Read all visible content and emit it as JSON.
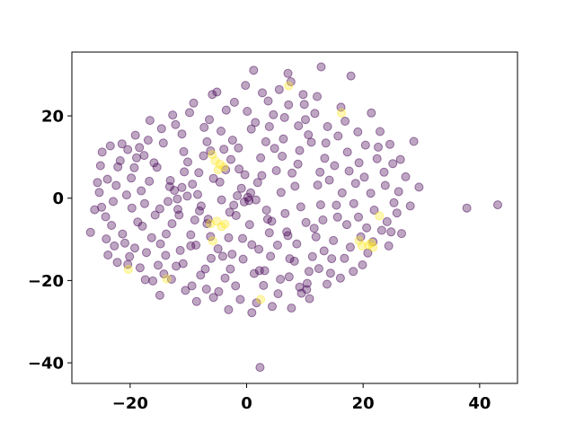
{
  "chart_data": {
    "type": "scatter",
    "title": "",
    "xlabel": "",
    "ylabel": "",
    "xlim": [
      -30,
      46.5
    ],
    "ylim": [
      -45,
      35.5
    ],
    "xticks": [
      -20,
      0,
      20,
      40
    ],
    "yticks": [
      -40,
      -20,
      0,
      20
    ],
    "xtick_labels": [
      "−20",
      "0",
      "20",
      "40"
    ],
    "ytick_labels": [
      "−40",
      "−20",
      "0",
      "20"
    ],
    "grid": false,
    "legend": "none",
    "colors": {
      "class_0": "#440154",
      "class_1": "#fde725"
    },
    "marker_alpha": 0.35,
    "series": [
      {
        "class": 0,
        "points": [
          [
            -26.8,
            -8.3
          ],
          [
            -25.6,
            3.8
          ],
          [
            -24.8,
            11.2
          ],
          [
            -24.2,
            -4.5
          ],
          [
            -23.8,
            -13.8
          ],
          [
            -22.9,
            -0.8
          ],
          [
            -22.1,
            7.6
          ],
          [
            -21.4,
            13.2
          ],
          [
            -20.9,
            -10.9
          ],
          [
            -20.4,
            -16.1
          ],
          [
            -19.8,
            4.9
          ],
          [
            -19.1,
            15.3
          ],
          [
            -18.7,
            -5.8
          ],
          [
            -18.1,
            1.8
          ],
          [
            -17.6,
            10.4
          ],
          [
            -17.2,
            -13.2
          ],
          [
            -16.6,
            18.9
          ],
          [
            -16.1,
            -20.1
          ],
          [
            -15.4,
            7.5
          ],
          [
            -14.9,
            -2.6
          ],
          [
            -14.3,
            13.4
          ],
          [
            -13.8,
            -8.7
          ],
          [
            -13.2,
            2.8
          ],
          [
            -12.7,
            20.2
          ],
          [
            -12.1,
            -16.5
          ],
          [
            -11.6,
            -4.1
          ],
          [
            -11.1,
            15.6
          ],
          [
            -10.5,
            -22.4
          ],
          [
            -10.1,
            8.8
          ],
          [
            -9.6,
            -11.6
          ],
          [
            -9.1,
            23.1
          ],
          [
            -8.4,
            0.9
          ],
          [
            -7.9,
            -18.7
          ],
          [
            -7.3,
            17.2
          ],
          [
            -6.8,
            -6.2
          ],
          [
            -6.2,
            11.5
          ],
          [
            -5.7,
            -24.1
          ],
          [
            -5.1,
            25.8
          ],
          [
            -4.6,
            3.9
          ],
          [
            -4.1,
            -14.1
          ],
          [
            -3.5,
            21.4
          ],
          [
            -2.9,
            -3.4
          ],
          [
            -2.4,
            14.1
          ],
          [
            -1.9,
            -21.3
          ],
          [
            -1.3,
            7.1
          ],
          [
            -0.7,
            -9.8
          ],
          [
            -0.2,
            27.4
          ],
          [
            0.4,
            -0.6
          ],
          [
            0.9,
            -27.8
          ],
          [
            1.5,
            18.4
          ],
          [
            2.1,
            -12.4
          ],
          [
            2.6,
            5.5
          ],
          [
            3.1,
            -17.6
          ],
          [
            3.7,
            23.6
          ],
          [
            4.3,
            -5.6
          ],
          [
            4.8,
            12.1
          ],
          [
            5.4,
            -23.2
          ],
          [
            5.9,
            1.4
          ],
          [
            6.5,
            19.6
          ],
          [
            7.1,
            -9.1
          ],
          [
            7.6,
            28.3
          ],
          [
            8.2,
            -15.3
          ],
          [
            8.8,
            8.3
          ],
          [
            9.3,
            -2.1
          ],
          [
            9.9,
            22.8
          ],
          [
            10.4,
            -20.7
          ],
          [
            11.1,
            13.6
          ],
          [
            11.6,
            -7.3
          ],
          [
            12.2,
            3.2
          ],
          [
            12.8,
            31.9
          ],
          [
            13.3,
            -12.8
          ],
          [
            13.9,
            17.4
          ],
          [
            14.4,
            -18.2
          ],
          [
            15.1,
            7.9
          ],
          [
            15.6,
            -4.6
          ],
          [
            16.2,
            22.1
          ],
          [
            16.8,
            -14.6
          ],
          [
            17.3,
            11.2
          ],
          [
            17.9,
            29.7
          ],
          [
            18.4,
            -1.3
          ],
          [
            19.1,
            16.1
          ],
          [
            19.6,
            -9.4
          ],
          [
            20.2,
            5.1
          ],
          [
            20.8,
            -13.3
          ],
          [
            21.4,
            20.7
          ],
          [
            21.9,
            -2.9
          ],
          [
            22.6,
            12.4
          ],
          [
            23.2,
            -7.8
          ],
          [
            23.8,
            3.1
          ],
          [
            24.4,
            -11.6
          ],
          [
            25.1,
            8.4
          ],
          [
            25.8,
            -3.6
          ],
          [
            26.6,
            -8.6
          ],
          [
            27.3,
            5.2
          ],
          [
            28.1,
            -1.9
          ],
          [
            28.7,
            13.8
          ],
          [
            29.6,
            2.7
          ],
          [
            37.8,
            -2.4
          ],
          [
            43.1,
            -1.6
          ],
          [
            2.3,
            -41.1
          ],
          [
            1.2,
            31.1
          ],
          [
            7.1,
            30.3
          ],
          [
            -13.5,
            -0.8
          ],
          [
            -12.4,
            1.9
          ],
          [
            -11.1,
            2.6
          ],
          [
            -10.2,
            0.5
          ],
          [
            -11.9,
            -0.2
          ],
          [
            -1.6,
            0.6
          ],
          [
            -0.4,
            -0.9
          ],
          [
            0.7,
            1.3
          ],
          [
            -0.9,
            2.4
          ],
          [
            1.6,
            -0.4
          ],
          [
            0.2,
            0.2
          ],
          [
            -2.2,
            -1.7
          ],
          [
            9.4,
            -23.1
          ],
          [
            10.3,
            -22.2
          ],
          [
            10.8,
            -24.4
          ],
          [
            9.1,
            -21.6
          ],
          [
            2.2,
            -17.6
          ],
          [
            1.3,
            -18.3
          ],
          [
            -6.6,
            -5.1
          ],
          [
            -14.2,
            -18.4
          ],
          [
            -17.4,
            -19.8
          ],
          [
            -15.2,
            -16.3
          ],
          [
            -18.9,
            9.8
          ],
          [
            -19.7,
            -2.4
          ],
          [
            -16.3,
            -9.6
          ],
          [
            -8.9,
            -5.3
          ],
          [
            -6.1,
            -14.6
          ],
          [
            -3.7,
            -19.4
          ],
          [
            -1.1,
            -24.6
          ],
          [
            4.4,
            -26.3
          ],
          [
            7.7,
            -26.7
          ],
          [
            12.4,
            -17.1
          ],
          [
            14.9,
            -10.3
          ],
          [
            17.2,
            -6.4
          ],
          [
            18.7,
            3.6
          ],
          [
            13.4,
            9.7
          ],
          [
            10.6,
            15.4
          ],
          [
            6.1,
            10.2
          ],
          [
            3.3,
            13.7
          ],
          [
            -2.7,
            9.4
          ],
          [
            -8.2,
            6.2
          ],
          [
            -10.8,
            11.3
          ],
          [
            -14.6,
            16.9
          ],
          [
            -6.4,
            19.1
          ],
          [
            -4.4,
            16.3
          ],
          [
            0.8,
            16.8
          ],
          [
            4.6,
            20.3
          ],
          [
            8.9,
            17.6
          ],
          [
            11.7,
            20.6
          ],
          [
            15.7,
            15.1
          ],
          [
            19.3,
            8.6
          ],
          [
            21.3,
            1.2
          ],
          [
            24.1,
            -5.7
          ],
          [
            22.4,
            9.6
          ],
          [
            26.1,
            1.6
          ],
          [
            3.9,
            -8.4
          ],
          [
            6.6,
            -3.7
          ],
          [
            8.3,
            2.9
          ],
          [
            10.2,
            -5.9
          ],
          [
            12.7,
            -1.6
          ],
          [
            14.2,
            4.4
          ],
          [
            16.4,
            1.3
          ],
          [
            5.1,
            6.7
          ],
          [
            -3.1,
            -9.6
          ],
          [
            -7.8,
            -1.9
          ],
          [
            -9.6,
            -8.9
          ],
          [
            -12.8,
            -6.2
          ],
          [
            -15.7,
            -4.1
          ],
          [
            -17.9,
            -6.8
          ],
          [
            -20.6,
            0.8
          ],
          [
            -22.4,
            3.1
          ],
          [
            -23.2,
            -6.6
          ],
          [
            -20.1,
            -14.2
          ],
          [
            -18.3,
            -16.9
          ],
          [
            -11.4,
            -12.7
          ],
          [
            -7.1,
            -17.2
          ],
          [
            -4.8,
            -22.7
          ],
          [
            -0.6,
            -14.8
          ],
          [
            2.9,
            -21.2
          ],
          [
            5.8,
            -19.7
          ],
          [
            8.6,
            -11.1
          ],
          [
            11.9,
            -9.4
          ],
          [
            13.1,
            -5.3
          ],
          [
            17.8,
            -11.9
          ],
          [
            19.9,
            -16.2
          ],
          [
            16.1,
            -19.4
          ],
          [
            13.8,
            -20.9
          ],
          [
            -5.9,
            25.2
          ],
          [
            -2.1,
            23.3
          ],
          [
            2.7,
            25.6
          ],
          [
            5.6,
            26.4
          ],
          [
            9.7,
            25.2
          ],
          [
            12.1,
            24.7
          ],
          [
            -9.8,
            20.8
          ],
          [
            -12.2,
            17.9
          ],
          [
            -16.9,
            14.1
          ],
          [
            -18.4,
            12.3
          ],
          [
            -21.7,
            9.1
          ],
          [
            -23.9,
            4.6
          ],
          [
            -24.9,
            -2.2
          ],
          [
            -21.3,
            -8.7
          ],
          [
            0.5,
            -6.4
          ],
          [
            -1.8,
            -4.2
          ],
          [
            1.9,
            3.8
          ],
          [
            -0.3,
            5.7
          ],
          [
            3.4,
            -2.9
          ],
          [
            -4.3,
            -0.4
          ],
          [
            -5.7,
            4.8
          ],
          [
            -3.6,
            6.9
          ],
          [
            6.9,
            -8.2
          ],
          [
            7.8,
            6.1
          ],
          [
            -7.4,
            10.3
          ],
          [
            -8.7,
            -11.4
          ],
          [
            -13.9,
            -13.9
          ],
          [
            -15.9,
            8.6
          ],
          [
            -10.7,
            6.4
          ],
          [
            -19.2,
            -12.1
          ],
          [
            -22.7,
            -11.6
          ],
          [
            -25.3,
            1.4
          ],
          [
            22.9,
            16.2
          ],
          [
            24.6,
            13.1
          ],
          [
            26.4,
            9.4
          ],
          [
            20.6,
            -7.2
          ],
          [
            18.3,
            -17.8
          ],
          [
            14.6,
            -14.7
          ],
          [
            11.3,
            -14.2
          ],
          [
            7.3,
            -19.1
          ],
          [
            4.1,
            -14.1
          ],
          [
            0.9,
            -11.3
          ],
          [
            -2.5,
            -13.6
          ],
          [
            -6.9,
            -22.1
          ],
          [
            -9.4,
            -21.3
          ],
          [
            -12.9,
            -19.7
          ],
          [
            -14.9,
            -23.6
          ],
          [
            -8.6,
            -25.1
          ],
          [
            -3.1,
            -27.1
          ],
          [
            1.7,
            -25.4
          ],
          [
            -1.4,
            12.2
          ],
          [
            2.4,
            9.8
          ],
          [
            6.3,
            14.4
          ],
          [
            9.1,
            11.6
          ],
          [
            12.6,
            6.3
          ],
          [
            15.4,
            -1.7
          ],
          [
            17.6,
            6.6
          ],
          [
            -11.8,
            -2.7
          ],
          [
            -13.1,
            4.3
          ],
          [
            -9.3,
            3.4
          ],
          [
            -8.1,
            -3.1
          ],
          [
            -6.2,
            -9.3
          ],
          [
            -4.9,
            -12.3
          ],
          [
            -2.8,
            -17.2
          ],
          [
            3.6,
            -5.1
          ],
          [
            5.3,
            -11.4
          ],
          [
            7.4,
            -14.7
          ],
          [
            10.7,
            -17.8
          ],
          [
            -16.7,
            4.1
          ],
          [
            -19.3,
            7.4
          ],
          [
            -20.4,
            11.8
          ],
          [
            -17.5,
            -1.3
          ],
          [
            -14.8,
            -11.1
          ],
          [
            -10.9,
            -15.9
          ],
          [
            -6.8,
            13.7
          ],
          [
            -3.9,
            11.9
          ],
          [
            0.1,
            21.1
          ],
          [
            3.9,
            17.4
          ],
          [
            7.2,
            22.7
          ],
          [
            10.1,
            19.1
          ],
          [
            13.6,
            13.4
          ],
          [
            16.9,
            18.7
          ],
          [
            20.4,
            12.9
          ],
          [
            23.6,
            6.3
          ],
          [
            25.3,
            -1.1
          ],
          [
            21.7,
            -10.6
          ],
          [
            -24.1,
            -9.9
          ],
          [
            -22.2,
            -15.6
          ],
          [
            -26.1,
            -2.8
          ],
          [
            -25.1,
            7.9
          ],
          [
            -23.4,
            12.7
          ],
          [
            19.2,
            -4.6
          ],
          [
            24.8,
            -8.2
          ]
        ]
      },
      {
        "class": 1,
        "points": [
          [
            -5.4,
            9.1
          ],
          [
            -4.6,
            8.3
          ],
          [
            -5.9,
            10.6
          ],
          [
            -3.9,
            7.6
          ],
          [
            -4.9,
            6.9
          ],
          [
            -6.2,
            -6.2
          ],
          [
            -5.1,
            -5.6
          ],
          [
            -4.3,
            -6.9
          ],
          [
            -5.8,
            -10.4
          ],
          [
            -3.7,
            -6.3
          ],
          [
            -20.3,
            -17.3
          ],
          [
            -13.7,
            -19.6
          ],
          [
            2.4,
            -24.6
          ],
          [
            7.2,
            27.3
          ],
          [
            16.3,
            20.7
          ],
          [
            19.3,
            -10.3
          ],
          [
            19.8,
            -11.6
          ],
          [
            20.9,
            -11.4
          ],
          [
            21.7,
            -11.9
          ],
          [
            21.4,
            -10.9
          ],
          [
            22.8,
            -4.3
          ]
        ]
      }
    ]
  }
}
